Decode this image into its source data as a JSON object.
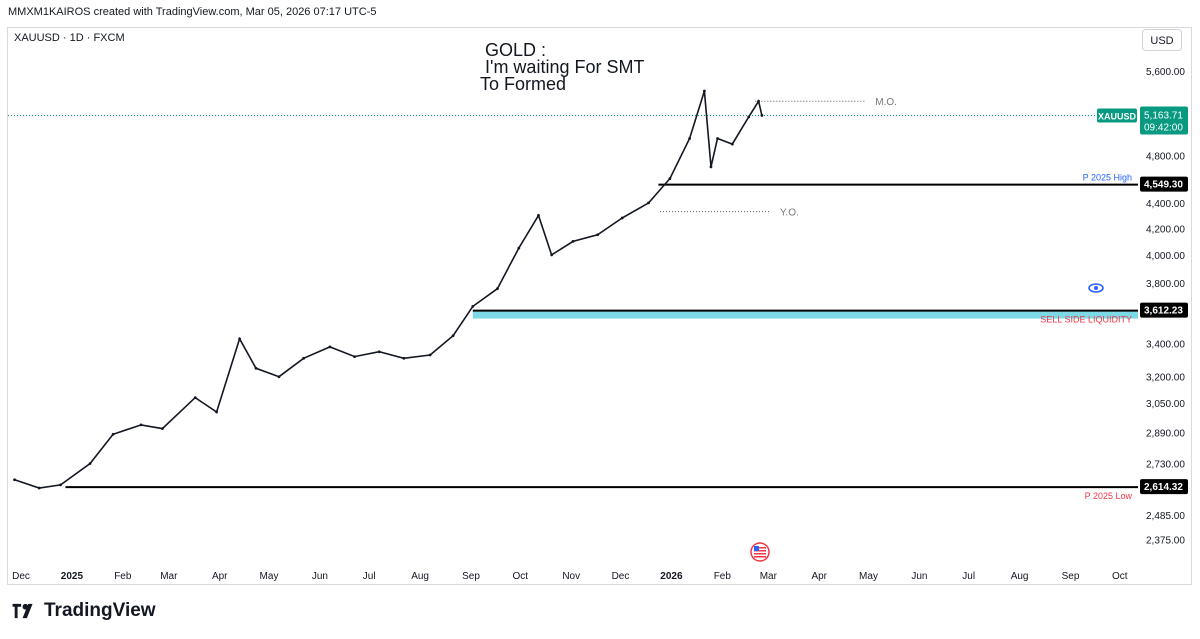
{
  "header": {
    "title": "MMXM1KAIROS created with TradingView.com, Mar 05, 2026 07:17 UTC-5"
  },
  "symbol_line": "XAUUSD · 1D · FXCM",
  "currency_button": "USD",
  "notes": {
    "line1": "GOLD :",
    "line2": "I'm waiting For SMT",
    "line3": "To Formed"
  },
  "footer": {
    "brand": "TradingView"
  },
  "chart_data": {
    "type": "line",
    "price_scale": "log",
    "x_tick_labels": [
      "Dec",
      "2025",
      "Feb",
      "Mar",
      "Apr",
      "May",
      "Jun",
      "Jul",
      "Aug",
      "Sep",
      "Oct",
      "Nov",
      "Dec",
      "2026",
      "Feb",
      "Mar",
      "Apr",
      "May",
      "Jun",
      "Jul",
      "Aug",
      "Sep",
      "Oct"
    ],
    "bold_x_ticks": [
      "2025",
      "2026"
    ],
    "y_tick_labels": [
      "5,600.00",
      "4,800.00",
      "4,400.00",
      "4,200.00",
      "4,000.00",
      "3,800.00",
      "3,400.00",
      "3,200.00",
      "3,050.00",
      "2,890.00",
      "2,730.00",
      "2,485.00",
      "2,375.00"
    ],
    "y_ticks": [
      5600,
      4800,
      4400,
      4200,
      4000,
      3800,
      3400,
      3200,
      3050,
      2890,
      2730,
      2485,
      2375
    ],
    "ylim": [
      2330,
      5800
    ],
    "series": [
      {
        "name": "XAUUSD",
        "x": [
          "2024-12-05",
          "2024-12-20",
          "2025-01-02",
          "2025-01-20",
          "2025-02-03",
          "2025-02-20",
          "2025-03-05",
          "2025-03-25",
          "2025-04-07",
          "2025-04-21",
          "2025-05-01",
          "2025-05-15",
          "2025-05-30",
          "2025-06-15",
          "2025-06-30",
          "2025-07-15",
          "2025-07-30",
          "2025-08-15",
          "2025-08-29",
          "2025-09-10",
          "2025-09-25",
          "2025-10-08",
          "2025-10-20",
          "2025-10-28",
          "2025-11-10",
          "2025-11-25",
          "2025-12-10",
          "2025-12-26",
          "2026-01-08",
          "2026-01-20",
          "2026-01-29",
          "2026-02-02",
          "2026-02-06",
          "2026-02-15",
          "2026-02-25",
          "2026-03-03",
          "2026-03-05"
        ],
        "values": [
          2650,
          2610,
          2625,
          2730,
          2880,
          2930,
          2910,
          3080,
          3000,
          3430,
          3250,
          3200,
          3310,
          3380,
          3320,
          3350,
          3310,
          3330,
          3450,
          3640,
          3760,
          4050,
          4300,
          4000,
          4100,
          4150,
          4280,
          4400,
          4600,
          4950,
          5400,
          4700,
          4950,
          4900,
          5150,
          5300,
          5163.71
        ]
      }
    ],
    "horizontal_levels": [
      {
        "label": "P 2025 High",
        "value": 4549.3,
        "value_label": "4,549.30",
        "color": "#2962ff",
        "start": "2026-01-01"
      },
      {
        "label": "SELL SIDE LIQUIDITY",
        "value": 3612.23,
        "value_label": "3,612.23",
        "color": "#f23645",
        "start": "2025-09-10"
      },
      {
        "label": "P 2025 Low",
        "value": 2614.32,
        "value_label": "2,614.32",
        "color": "#f23645",
        "start": "2025-01-05"
      }
    ],
    "dotted_levels": [
      {
        "label": "M.O.",
        "value": 5300,
        "start": "2026-03-01"
      },
      {
        "label": "Y.O.",
        "value": 4330,
        "start": "2026-01-02"
      }
    ],
    "last_price": {
      "symbol": "XAUUSD",
      "value": "5,163.71",
      "countdown": "09:42:00",
      "color": "#089981"
    },
    "liquidity_zone_color": "#7dd9e6"
  }
}
